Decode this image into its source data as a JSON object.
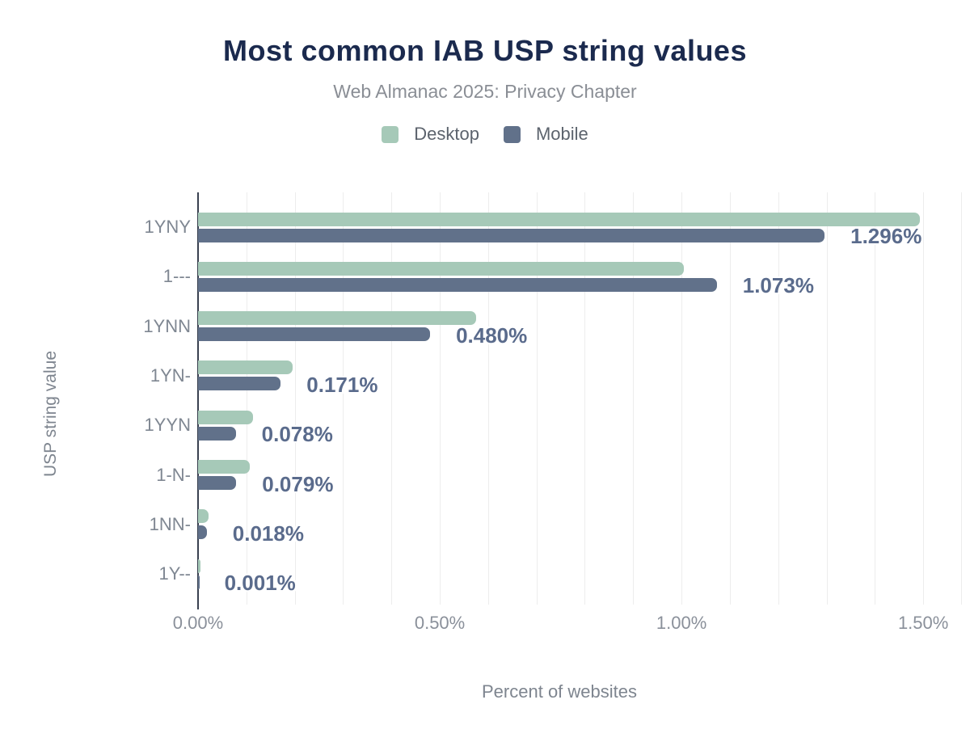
{
  "header": {
    "title": "Most common IAB USP string values",
    "subtitle": "Web Almanac 2025: Privacy Chapter"
  },
  "chart_data": {
    "type": "bar",
    "orientation": "horizontal",
    "title": "Most common IAB USP string values",
    "subtitle": "Web Almanac 2025: Privacy Chapter",
    "xlabel": "Percent of websites",
    "ylabel": "USP string value",
    "categories": [
      "1YNY",
      "1---",
      "1YNN",
      "1YN-",
      "1YYN",
      "1-N-",
      "1NN-",
      "1Y--"
    ],
    "series": [
      {
        "name": "Desktop",
        "color": "#a6c9b8",
        "values": [
          1.493,
          1.005,
          0.575,
          0.195,
          0.114,
          0.107,
          0.021,
          0.005
        ]
      },
      {
        "name": "Mobile",
        "color": "#61718a",
        "values": [
          1.296,
          1.073,
          0.48,
          0.171,
          0.078,
          0.079,
          0.018,
          0.001
        ]
      }
    ],
    "value_labels": [
      "1.296%",
      "1.073%",
      "0.480%",
      "0.171%",
      "0.078%",
      "0.079%",
      "0.018%",
      "0.001%"
    ],
    "value_labels_series": "Mobile",
    "xticks": [
      {
        "value": 0.0,
        "label": "0.00%"
      },
      {
        "value": 0.5,
        "label": "0.50%"
      },
      {
        "value": 1.0,
        "label": "1.00%"
      },
      {
        "value": 1.5,
        "label": "1.50%"
      }
    ],
    "xlim": [
      0,
      1.58
    ],
    "grid_step": 0.1,
    "grid": true,
    "legend_position": "top",
    "colors": {
      "title": "#1b2a4e",
      "subtitle": "#8a8e95",
      "legend_text": "#5c636d",
      "value_label": "#5a6b8c",
      "category_label": "#7f8792",
      "tick_label": "#8a909a",
      "axis_title": "#7e858f",
      "gridline": "#ededed",
      "axis_line": "#3a4150",
      "background": "#ffffff"
    }
  }
}
